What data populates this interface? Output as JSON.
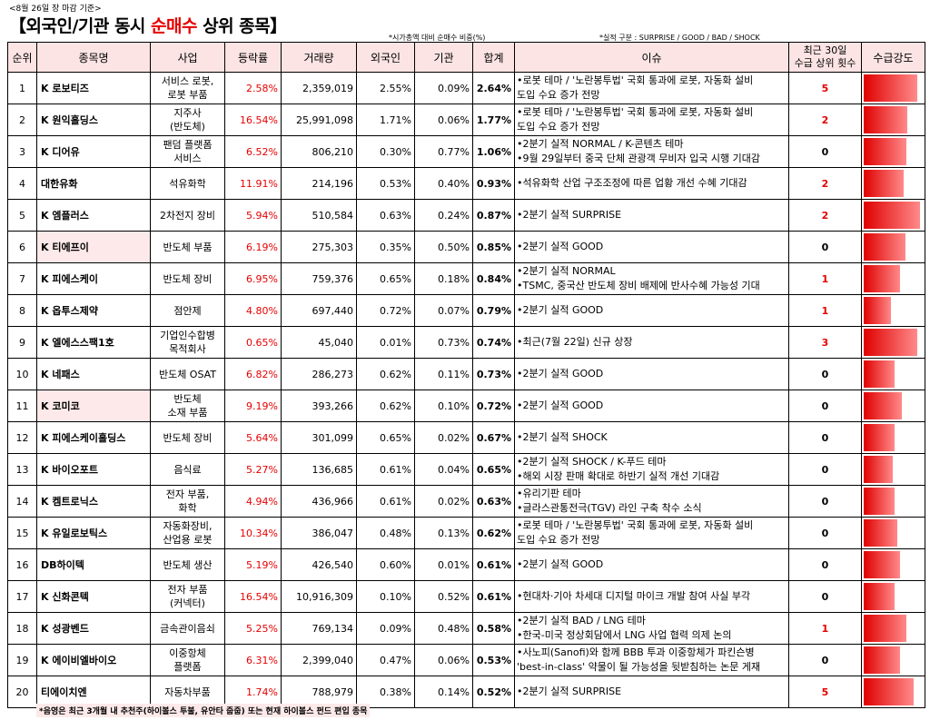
{
  "header": {
    "date_note": "<8월 26일 장 마감 기준>",
    "title_prefix": "【외국인/기관 동시 ",
    "title_highlight": "순매수",
    "title_suffix": " 상위 종목】",
    "note_ratio": "*시가총액 대비 순매수 비중(%)",
    "note_earnings": "*실적 구분 : SURPRISE / GOOD / BAD / SHOCK"
  },
  "columns": {
    "rank": "순위",
    "name": "종목명",
    "biz": "사업",
    "chg": "등락률",
    "vol": "거래량",
    "foreign": "외국인",
    "inst": "기관",
    "total": "합계",
    "issue": "이슈",
    "count_line1": "최근 30일",
    "count_line2": "수급 상위 횟수",
    "strength": "수급강도"
  },
  "colors": {
    "accent": "#e60000",
    "header_bg": "#fce4e4",
    "highlight_bg": "#fde9e9"
  },
  "rows": [
    {
      "rank": "1",
      "name": "K 로보티즈",
      "biz": "서비스 로봇,\n로봇 부품",
      "chg": "2.58%",
      "vol": "2,359,019",
      "foreign": "2.55%",
      "inst": "0.09%",
      "total": "2.64%",
      "issue1": "•로봇 테마 / '노란봉투법' 국회 통과에 로봇, 자동화 설비",
      "issue2": "도입 수요 증가 전망",
      "count": "5",
      "strength": 0.88,
      "hl": false
    },
    {
      "rank": "2",
      "name": "K 원익홀딩스",
      "biz": "지주사\n(반도체)",
      "chg": "16.54%",
      "vol": "25,991,098",
      "foreign": "1.71%",
      "inst": "0.06%",
      "total": "1.77%",
      "issue1": "•로봇 테마 / '노란봉투법' 국회 통과에 로봇, 자동화 설비",
      "issue2": "도입 수요 증가 전망",
      "count": "2",
      "strength": 0.72,
      "hl": false
    },
    {
      "rank": "3",
      "name": "K 디어유",
      "biz": "팬덤 플랫폼\n서비스",
      "chg": "6.52%",
      "vol": "806,210",
      "foreign": "0.30%",
      "inst": "0.77%",
      "total": "1.06%",
      "issue1": "•2분기 실적 NORMAL / K-콘텐츠 테마",
      "issue2": "•9월 29일부터 중국 단체 관광객 무비자 입국 시행 기대감",
      "count": "0",
      "strength": 0.7,
      "hl": false
    },
    {
      "rank": "4",
      "name": "대한유화",
      "biz": "석유화학",
      "chg": "11.91%",
      "vol": "214,196",
      "foreign": "0.53%",
      "inst": "0.40%",
      "total": "0.93%",
      "issue1": "•석유화학 산업 구조조정에 따른 업황 개선 수혜 기대감",
      "issue2": "",
      "count": "2",
      "strength": 0.66,
      "hl": false
    },
    {
      "rank": "5",
      "name": "K 엠플러스",
      "biz": "2차전지 장비",
      "chg": "5.94%",
      "vol": "510,584",
      "foreign": "0.63%",
      "inst": "0.24%",
      "total": "0.87%",
      "issue1": "•2분기 실적 SURPRISE",
      "issue2": "",
      "count": "2",
      "strength": 0.92,
      "hl": false
    },
    {
      "rank": "6",
      "name": "K 티에프이",
      "biz": "반도체 부품",
      "chg": "6.19%",
      "vol": "275,303",
      "foreign": "0.35%",
      "inst": "0.50%",
      "total": "0.85%",
      "issue1": "•2분기 실적 GOOD",
      "issue2": "",
      "count": "0",
      "strength": 0.68,
      "hl": true
    },
    {
      "rank": "7",
      "name": "K 피에스케이",
      "biz": "반도체 장비",
      "chg": "6.95%",
      "vol": "759,376",
      "foreign": "0.65%",
      "inst": "0.18%",
      "total": "0.84%",
      "issue1": "•2분기 실적 NORMAL",
      "issue2": "•TSMC, 중국산 반도체 장비 배제에 반사수혜 가능성 기대",
      "count": "1",
      "strength": 0.6,
      "hl": false
    },
    {
      "rank": "8",
      "name": "K 옵투스제약",
      "biz": "점안제",
      "chg": "4.80%",
      "vol": "697,440",
      "foreign": "0.72%",
      "inst": "0.07%",
      "total": "0.79%",
      "issue1": "•2분기 실적 GOOD",
      "issue2": "",
      "count": "1",
      "strength": 0.45,
      "hl": false
    },
    {
      "rank": "9",
      "name": "K 엘에스스팩1호",
      "biz": "기업인수합병\n목적회사",
      "chg": "0.65%",
      "vol": "45,040",
      "foreign": "0.01%",
      "inst": "0.73%",
      "total": "0.74%",
      "issue1": "•최근(7월 22일) 신규 상장",
      "issue2": "",
      "count": "3",
      "strength": 0.88,
      "hl": false
    },
    {
      "rank": "10",
      "name": "K 네패스",
      "biz": "반도체 OSAT",
      "chg": "6.82%",
      "vol": "286,273",
      "foreign": "0.62%",
      "inst": "0.11%",
      "total": "0.73%",
      "issue1": "•2분기 실적 GOOD",
      "issue2": "",
      "count": "0",
      "strength": 0.5,
      "hl": false
    },
    {
      "rank": "11",
      "name": "K 코미코",
      "biz": "반도체\n소재 부품",
      "chg": "9.19%",
      "vol": "393,266",
      "foreign": "0.62%",
      "inst": "0.10%",
      "total": "0.72%",
      "issue1": "•2분기 실적 GOOD",
      "issue2": "",
      "count": "0",
      "strength": 0.62,
      "hl": true
    },
    {
      "rank": "12",
      "name": "K 피에스케이홀딩스",
      "biz": "반도체 장비",
      "chg": "5.64%",
      "vol": "301,099",
      "foreign": "0.65%",
      "inst": "0.02%",
      "total": "0.67%",
      "issue1": "•2분기 실적 SHOCK",
      "issue2": "",
      "count": "0",
      "strength": 0.5,
      "hl": false
    },
    {
      "rank": "13",
      "name": "K 바이오포트",
      "biz": "음식료",
      "chg": "5.27%",
      "vol": "136,685",
      "foreign": "0.61%",
      "inst": "0.04%",
      "total": "0.65%",
      "issue1": "•2분기 실적 SHOCK / K-푸드 테마",
      "issue2": "•해외 시장 판매 확대로 하반기 실적 개선 기대감",
      "count": "0",
      "strength": 0.48,
      "hl": false
    },
    {
      "rank": "14",
      "name": "K 켐트로닉스",
      "biz": "전자 부품,\n화학",
      "chg": "4.94%",
      "vol": "436,966",
      "foreign": "0.61%",
      "inst": "0.02%",
      "total": "0.63%",
      "issue1": "•유리기판 테마",
      "issue2": "•글라스관통전극(TGV) 라인 구축 착수 소식",
      "count": "0",
      "strength": 0.5,
      "hl": false
    },
    {
      "rank": "15",
      "name": "K 유일로보틱스",
      "biz": "자동화장비,\n산업용 로봇",
      "chg": "10.34%",
      "vol": "386,047",
      "foreign": "0.48%",
      "inst": "0.13%",
      "total": "0.62%",
      "issue1": "•로봇 테마 / '노란봉투법' 국회 통과에 로봇, 자동화 설비",
      "issue2": "도입 수요 증가 전망",
      "count": "0",
      "strength": 0.55,
      "hl": false
    },
    {
      "rank": "16",
      "name": "DB하이텍",
      "biz": "반도체 생산",
      "chg": "5.19%",
      "vol": "426,540",
      "foreign": "0.60%",
      "inst": "0.01%",
      "total": "0.61%",
      "issue1": "•2분기 실적 GOOD",
      "issue2": "",
      "count": "0",
      "strength": 0.6,
      "hl": false
    },
    {
      "rank": "17",
      "name": "K 신화콘텍",
      "biz": "전자 부품\n(커넥터)",
      "chg": "16.54%",
      "vol": "10,916,309",
      "foreign": "0.10%",
      "inst": "0.52%",
      "total": "0.61%",
      "issue1": "•현대차·기아 차세대 디지털 마이크 개발 참여 사실 부각",
      "issue2": "",
      "count": "0",
      "strength": 0.5,
      "hl": false
    },
    {
      "rank": "18",
      "name": "K 성광벤드",
      "biz": "금속관이음쇠",
      "chg": "5.25%",
      "vol": "769,134",
      "foreign": "0.09%",
      "inst": "0.48%",
      "total": "0.58%",
      "issue1": "•2분기 실적 BAD / LNG 테마",
      "issue2": "•한국-미국 정상회담에서 LNG 사업 협력 의제 논의",
      "count": "1",
      "strength": 0.7,
      "hl": false
    },
    {
      "rank": "19",
      "name": "K 에이비엘바이오",
      "biz": "이중항체\n플랫폼",
      "chg": "6.31%",
      "vol": "2,399,040",
      "foreign": "0.47%",
      "inst": "0.06%",
      "total": "0.53%",
      "issue1": "•사노피(Sanofi)와 함께 BBB 투과 이중항체가 파킨슨병",
      "issue2": "'best-in-class' 약물이 될 가능성을 뒷받침하는 논문 게재",
      "count": "0",
      "strength": 0.6,
      "hl": false
    },
    {
      "rank": "20",
      "name": "티에이치엔",
      "biz": "자동차부품",
      "chg": "1.74%",
      "vol": "788,979",
      "foreign": "0.38%",
      "inst": "0.14%",
      "total": "0.52%",
      "issue1": "•2분기 실적 SURPRISE",
      "issue2": "",
      "count": "5",
      "strength": 0.82,
      "hl": false
    }
  ],
  "footnote": "*음영은 최근 3개월 내 추천주(하이볼스 투불, 유안타 줍줍) 또는 현재 하이볼스 펀드 편입 종목"
}
